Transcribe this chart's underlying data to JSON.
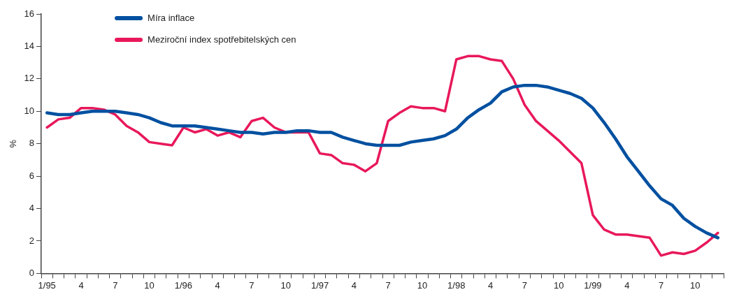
{
  "chart_data": {
    "type": "line",
    "ylabel": "%",
    "categories": [
      "1/95",
      null,
      null,
      "4",
      null,
      null,
      "7",
      null,
      null,
      "10",
      null,
      null,
      "1/96",
      null,
      null,
      "4",
      null,
      null,
      "7",
      null,
      null,
      "10",
      null,
      null,
      "1/97",
      null,
      null,
      "4",
      null,
      null,
      "7",
      null,
      null,
      "10",
      null,
      null,
      "1/98",
      null,
      null,
      "4",
      null,
      null,
      "7",
      null,
      null,
      "10",
      null,
      null,
      "1/99",
      null,
      null,
      "4",
      null,
      null,
      "7",
      null,
      null,
      "10",
      null,
      null
    ],
    "series": [
      {
        "name": "Míra inflace",
        "color": "#0050a0",
        "values": [
          9.9,
          9.8,
          9.8,
          9.9,
          10.0,
          10.0,
          10.0,
          9.9,
          9.8,
          9.6,
          9.3,
          9.1,
          9.1,
          9.1,
          9.0,
          8.9,
          8.8,
          8.7,
          8.7,
          8.6,
          8.7,
          8.7,
          8.8,
          8.8,
          8.7,
          8.7,
          8.4,
          8.2,
          8.0,
          7.9,
          7.9,
          7.9,
          8.1,
          8.2,
          8.3,
          8.5,
          8.9,
          9.6,
          10.1,
          10.5,
          11.2,
          11.5,
          11.6,
          11.6,
          11.5,
          11.3,
          11.1,
          10.8,
          10.2,
          9.3,
          8.3,
          7.2,
          6.3,
          5.4,
          4.6,
          4.2,
          3.4,
          2.9,
          2.5,
          2.2
        ]
      },
      {
        "name": "Meziroční index spotřebitelských cen",
        "color": "#e8185a",
        "values": [
          9.0,
          9.5,
          9.6,
          10.2,
          10.2,
          10.1,
          9.8,
          9.1,
          8.7,
          8.1,
          8.0,
          7.9,
          9.0,
          8.7,
          8.9,
          8.5,
          8.7,
          8.4,
          9.4,
          9.6,
          9.0,
          8.7,
          8.7,
          8.7,
          7.4,
          7.3,
          6.8,
          6.7,
          6.3,
          6.8,
          9.4,
          9.9,
          10.3,
          10.2,
          10.2,
          10.0,
          13.2,
          13.4,
          13.4,
          13.2,
          13.1,
          12.0,
          10.4,
          9.4,
          8.8,
          8.2,
          7.5,
          6.8,
          3.6,
          2.7,
          2.4,
          2.4,
          2.3,
          2.2,
          1.1,
          1.3,
          1.2,
          1.4,
          1.9,
          2.5
        ]
      }
    ],
    "ylim": [
      0,
      16
    ],
    "yticks": [
      0,
      2,
      4,
      6,
      8,
      10,
      12,
      14,
      16
    ],
    "grid": false,
    "legend": "top left",
    "marker": "none",
    "line_style": "solid"
  }
}
